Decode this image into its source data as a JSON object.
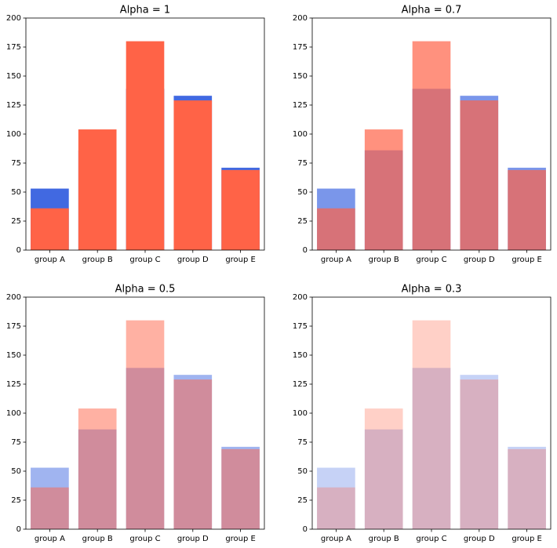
{
  "chart_data": [
    {
      "type": "bar",
      "title": "Alpha = 1",
      "alpha": 1,
      "categories": [
        "group A",
        "group B",
        "group C",
        "group D",
        "group E"
      ],
      "series": [
        {
          "color": "#4169e1",
          "values": [
            53,
            86,
            139,
            133,
            71
          ]
        },
        {
          "color": "#ff6347",
          "values": [
            36,
            104,
            180,
            129,
            69
          ]
        }
      ],
      "ylim": [
        0,
        200
      ],
      "yticks": [
        0,
        25,
        50,
        75,
        100,
        125,
        150,
        175,
        200
      ]
    },
    {
      "type": "bar",
      "title": "Alpha = 0.7",
      "alpha": 0.7,
      "categories": [
        "group A",
        "group B",
        "group C",
        "group D",
        "group E"
      ],
      "series": [
        {
          "color": "#4169e1",
          "values": [
            53,
            86,
            139,
            133,
            71
          ]
        },
        {
          "color": "#ff6347",
          "values": [
            36,
            104,
            180,
            129,
            69
          ]
        }
      ],
      "ylim": [
        0,
        200
      ],
      "yticks": [
        0,
        25,
        50,
        75,
        100,
        125,
        150,
        175,
        200
      ]
    },
    {
      "type": "bar",
      "title": "Alpha = 0.5",
      "alpha": 0.5,
      "categories": [
        "group A",
        "group B",
        "group C",
        "group D",
        "group E"
      ],
      "series": [
        {
          "color": "#4169e1",
          "values": [
            53,
            86,
            139,
            133,
            71
          ]
        },
        {
          "color": "#ff6347",
          "values": [
            36,
            104,
            180,
            129,
            69
          ]
        }
      ],
      "ylim": [
        0,
        200
      ],
      "yticks": [
        0,
        25,
        50,
        75,
        100,
        125,
        150,
        175,
        200
      ]
    },
    {
      "type": "bar",
      "title": "Alpha = 0.3",
      "alpha": 0.3,
      "categories": [
        "group A",
        "group B",
        "group C",
        "group D",
        "group E"
      ],
      "series": [
        {
          "color": "#4169e1",
          "values": [
            53,
            86,
            139,
            133,
            71
          ]
        },
        {
          "color": "#ff6347",
          "values": [
            36,
            104,
            180,
            129,
            69
          ]
        }
      ],
      "ylim": [
        0,
        200
      ],
      "yticks": [
        0,
        25,
        50,
        75,
        100,
        125,
        150,
        175,
        200
      ]
    }
  ]
}
